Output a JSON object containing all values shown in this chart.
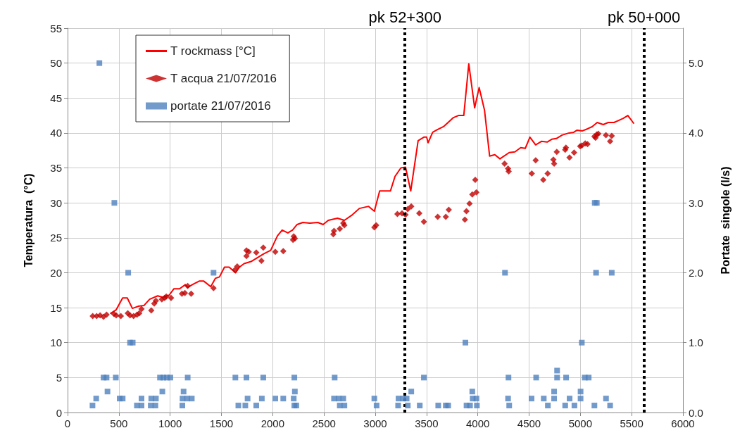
{
  "chart_data": {
    "type": "scatter",
    "ylabel": "Temperatura  (°C)",
    "y2label": "Portate  singole (l/s)",
    "xlim": [
      0,
      6000
    ],
    "xticks": [
      0,
      500,
      1000,
      1500,
      2000,
      2500,
      3000,
      3500,
      4000,
      4500,
      5000,
      5500,
      6000
    ],
    "ylim": [
      0,
      55
    ],
    "yticks": [
      0,
      5,
      10,
      15,
      20,
      25,
      30,
      35,
      40,
      45,
      50,
      55
    ],
    "y2lim": [
      0,
      5.5
    ],
    "y2ticks": [
      {
        "value": 0,
        "label": "0.0"
      },
      {
        "value": 1,
        "label": "1.0"
      },
      {
        "value": 2,
        "label": "2.0"
      },
      {
        "value": 3,
        "label": "3.0"
      },
      {
        "value": 4,
        "label": "4.0"
      },
      {
        "value": 5,
        "label": "5.0"
      }
    ],
    "grid": true,
    "legend": "top left",
    "ref_lines": [
      {
        "axis": "x",
        "value": 3290,
        "label": "pk 52+300",
        "color": "#000000",
        "line_style": "dotted"
      },
      {
        "axis": "x",
        "value": 5620,
        "label": "pk 50+000",
        "color": "#000000",
        "line_style": "dotted"
      }
    ],
    "series": [
      {
        "name": "T rockmass [°C]",
        "type": "line",
        "color": "#ff0000",
        "marker": "none",
        "line_style": "solid",
        "x": [
          420,
          474,
          537,
          582,
          632,
          688,
          744,
          800,
          879,
          924,
          991,
          1036,
          1092,
          1148,
          1171,
          1216,
          1283,
          1328,
          1396,
          1441,
          1481,
          1530,
          1575,
          1608,
          1638,
          1676,
          1721,
          1789,
          1856,
          1912,
          1980,
          2047,
          2092,
          2148,
          2193,
          2238,
          2294,
          2362,
          2440,
          2492,
          2542,
          2632,
          2699,
          2777,
          2845,
          2935,
          2991,
          3043,
          3148,
          3193,
          3250,
          3295,
          3346,
          3418,
          3474,
          3501,
          3515,
          3560,
          3609,
          3665,
          3710,
          3762,
          3811,
          3863,
          3912,
          3969,
          4013,
          4065,
          4115,
          4166,
          4216,
          4306,
          4362,
          4418,
          4463,
          4508,
          4564,
          4620,
          4676,
          4721,
          4766,
          4822,
          4890,
          4935,
          4968,
          5020,
          5070,
          5115,
          5164,
          5223,
          5272,
          5328,
          5373,
          5418,
          5463,
          5519
        ],
        "values": [
          14.2,
          14.7,
          16.4,
          16.4,
          14.9,
          15.2,
          15.3,
          16.2,
          16.7,
          16.5,
          16.8,
          17.7,
          17.7,
          18.3,
          17.9,
          18.3,
          18.8,
          18.8,
          18.0,
          19.2,
          19.4,
          20.8,
          20.8,
          20.4,
          20.0,
          20.8,
          21.3,
          21.6,
          22.2,
          22.7,
          23.2,
          25.3,
          26.1,
          25.7,
          26.1,
          26.9,
          27.2,
          27.1,
          27.2,
          26.9,
          27.5,
          27.8,
          27.5,
          28.3,
          29.2,
          29.5,
          28.8,
          31.7,
          31.7,
          33.8,
          35.0,
          35.1,
          31.7,
          38.9,
          39.4,
          39.4,
          38.6,
          40.1,
          40.5,
          40.9,
          41.5,
          42.2,
          42.5,
          42.5,
          49.9,
          43.6,
          46.5,
          43.3,
          36.7,
          36.9,
          36.3,
          37.2,
          37.3,
          37.9,
          37.8,
          39.4,
          38.3,
          38.8,
          38.7,
          39.1,
          39.2,
          39.7,
          40.0,
          40.1,
          40.4,
          40.3,
          40.6,
          40.9,
          41.5,
          41.2,
          41.5,
          41.5,
          41.8,
          42.1,
          42.5,
          41.4
        ]
      },
      {
        "name": "T acqua 21/07/2016",
        "type": "scatter",
        "color": "#c00000",
        "marker": "diamond",
        "x": [
          245,
          283,
          317,
          350,
          380,
          452,
          474,
          519,
          587,
          609,
          643,
          677,
          699,
          721,
          816,
          845,
          861,
          919,
          946,
          962,
          1009,
          1115,
          1144,
          1171,
          1205,
          1423,
          1631,
          1654,
          1744,
          1744,
          1766,
          1840,
          1890,
          1908,
          2025,
          2103,
          2198,
          2205,
          2216,
          2591,
          2598,
          2654,
          2688,
          2699,
          2991,
          3009,
          3216,
          3261,
          3295,
          3317,
          3351,
          3429,
          3474,
          3609,
          3688,
          3717,
          3874,
          3889,
          3919,
          3946,
          3986,
          3975,
          4261,
          4295,
          4301,
          4526,
          4564,
          4638,
          4681,
          4737,
          4744,
          4770,
          4852,
          4859,
          4894,
          4939,
          4998,
          5014,
          5047,
          5070,
          5137,
          5148,
          5160,
          5175,
          5249,
          5290,
          5306
        ],
        "values": [
          13.8,
          13.8,
          13.9,
          13.7,
          14.0,
          14.1,
          13.9,
          13.8,
          14.2,
          13.9,
          13.8,
          14.0,
          14.2,
          14.8,
          14.6,
          15.6,
          16.0,
          16.2,
          16.4,
          16.6,
          16.4,
          17.0,
          17.1,
          18.1,
          17.0,
          17.8,
          20.4,
          20.9,
          23.2,
          22.4,
          23.0,
          22.9,
          21.7,
          23.6,
          23.0,
          23.1,
          24.7,
          25.2,
          24.9,
          25.5,
          26.0,
          26.3,
          27.1,
          26.8,
          26.5,
          26.8,
          28.4,
          28.5,
          28.3,
          29.1,
          29.5,
          28.5,
          27.3,
          28.0,
          28.0,
          29.0,
          27.6,
          28.8,
          29.9,
          31.2,
          31.5,
          33.3,
          35.6,
          34.9,
          34.5,
          34.2,
          36.1,
          33.3,
          34.2,
          36.2,
          35.6,
          37.3,
          37.6,
          37.9,
          36.5,
          37.2,
          38.1,
          38.2,
          38.5,
          38.4,
          39.5,
          39.3,
          39.8,
          39.9,
          39.7,
          38.8,
          39.6
        ]
      },
      {
        "name": "portate 21/07/2016",
        "type": "scatter",
        "axis": "y2",
        "color": "#4f81bd",
        "marker": "square",
        "x": [
          310,
          456,
          591,
          1423,
          609,
          635,
          351,
          380,
          470,
          901,
          934,
          968,
          1002,
          1171,
          1636,
          1744,
          1908,
          2211,
          2604,
          389,
          924,
          1131,
          2216,
          279,
          508,
          537,
          721,
          816,
          861,
          1121,
          1166,
          1211,
          1755,
          1894,
          2025,
          2103,
          2205,
          2598,
          2643,
          2688,
          2991,
          243,
          676,
          721,
          811,
          856,
          1119,
          1665,
          1733,
          1840,
          2211,
          2230,
          2654,
          2699,
          3013,
          3879,
          5014,
          4773,
          3474,
          4299,
          4569,
          4773,
          4861,
          5043,
          5081,
          3351,
          3946,
          4744,
          5002,
          3227,
          3272,
          3306,
          3950,
          3987,
          4295,
          4524,
          4643,
          4744,
          4895,
          5002,
          5250,
          3223,
          3317,
          3434,
          3614,
          3688,
          3711,
          3890,
          3924,
          3991,
          4306,
          4683,
          4852,
          4942,
          5137,
          5290,
          5140,
          5160,
          4265,
          5153,
          5306
        ],
        "values": [
          5.0,
          3.0,
          2.0,
          2.0,
          1.0,
          1.0,
          0.5,
          0.5,
          0.5,
          0.5,
          0.5,
          0.5,
          0.5,
          0.5,
          0.5,
          0.5,
          0.5,
          0.5,
          0.5,
          0.3,
          0.3,
          0.3,
          0.3,
          0.2,
          0.2,
          0.2,
          0.2,
          0.2,
          0.2,
          0.2,
          0.2,
          0.2,
          0.2,
          0.2,
          0.2,
          0.2,
          0.2,
          0.2,
          0.2,
          0.2,
          0.2,
          0.1,
          0.1,
          0.1,
          0.1,
          0.1,
          0.1,
          0.1,
          0.1,
          0.1,
          0.1,
          0.1,
          0.1,
          0.1,
          0.1,
          1.0,
          1.0,
          0.6,
          0.5,
          0.5,
          0.5,
          0.5,
          0.5,
          0.5,
          0.5,
          0.3,
          0.3,
          0.3,
          0.3,
          0.2,
          0.2,
          0.2,
          0.2,
          0.2,
          0.2,
          0.2,
          0.2,
          0.2,
          0.2,
          0.2,
          0.2,
          0.1,
          0.1,
          0.1,
          0.1,
          0.1,
          0.1,
          0.1,
          0.1,
          0.1,
          0.1,
          0.1,
          0.1,
          0.1,
          0.1,
          0.1,
          3.0,
          3.0,
          2.0,
          2.0,
          2.0
        ]
      }
    ]
  }
}
